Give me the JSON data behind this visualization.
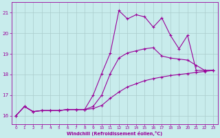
{
  "background_color": "#c8ecec",
  "grid_color": "#aaccaa",
  "line_color": "#990099",
  "xlim": [
    -0.5,
    23.5
  ],
  "ylim": [
    15.6,
    21.5
  ],
  "xticks": [
    0,
    1,
    2,
    3,
    4,
    5,
    6,
    7,
    8,
    9,
    10,
    11,
    12,
    13,
    14,
    15,
    16,
    17,
    18,
    19,
    20,
    21,
    22,
    23
  ],
  "yticks": [
    16,
    17,
    18,
    19,
    20,
    21
  ],
  "xlabel": "Windchill (Refroidissement éolien,°C)",
  "curve_high_x": [
    0,
    1,
    2,
    3,
    4,
    5,
    6,
    7,
    8,
    9,
    10,
    11,
    12,
    13,
    14,
    15,
    16,
    17,
    18,
    19,
    20,
    21,
    22,
    23
  ],
  "curve_high_y": [
    16.0,
    16.45,
    16.2,
    16.25,
    16.25,
    16.25,
    16.3,
    16.3,
    16.3,
    17.0,
    18.05,
    19.05,
    21.1,
    20.7,
    20.9,
    20.8,
    20.3,
    20.75,
    19.9,
    19.25,
    19.9,
    18.2,
    18.2,
    18.2
  ],
  "curve_mid_x": [
    0,
    1,
    2,
    3,
    4,
    5,
    6,
    7,
    8,
    9,
    10,
    11,
    12,
    13,
    14,
    15,
    16,
    17,
    18,
    19,
    20,
    21,
    22,
    23
  ],
  "curve_mid_y": [
    16.0,
    16.45,
    16.2,
    16.25,
    16.25,
    16.25,
    16.3,
    16.3,
    16.3,
    16.45,
    17.0,
    18.05,
    18.8,
    19.05,
    19.15,
    19.25,
    19.3,
    18.9,
    18.8,
    18.75,
    18.7,
    18.45,
    18.2,
    18.2
  ],
  "curve_low_x": [
    0,
    1,
    2,
    3,
    4,
    5,
    6,
    7,
    8,
    9,
    10,
    11,
    12,
    13,
    14,
    15,
    16,
    17,
    18,
    19,
    20,
    21,
    22,
    23
  ],
  "curve_low_y": [
    16.0,
    16.45,
    16.2,
    16.25,
    16.25,
    16.25,
    16.3,
    16.3,
    16.3,
    16.35,
    16.5,
    16.85,
    17.15,
    17.4,
    17.55,
    17.7,
    17.8,
    17.88,
    17.95,
    18.0,
    18.05,
    18.1,
    18.15,
    18.2
  ]
}
